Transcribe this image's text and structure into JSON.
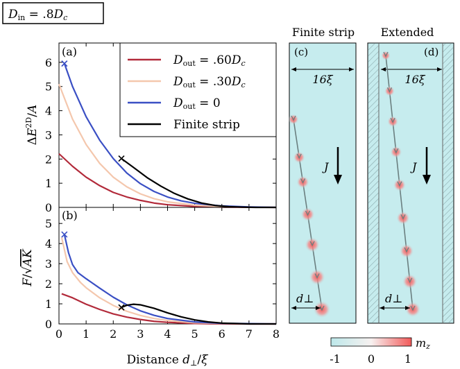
{
  "header_label": "D_in = .8D_c",
  "chart_data": [
    {
      "type": "line",
      "panel_label": "(a)",
      "xlabel": "Distance d⊥/ξ",
      "ylabel": "ΔE^2D/A",
      "xlim": [
        0,
        8
      ],
      "ylim": [
        0,
        6.8
      ],
      "xticks": [
        0,
        1,
        2,
        3,
        4,
        5,
        6,
        7,
        8
      ],
      "yticks": [
        0,
        1,
        2,
        3,
        4,
        5,
        6
      ],
      "legend_position": "top-right",
      "series": [
        {
          "name": "D_out = .60D_c",
          "color": "#b22a3a",
          "x": [
            0,
            0.5,
            1,
            1.5,
            2,
            2.5,
            3,
            3.5,
            4,
            5,
            6,
            8
          ],
          "y": [
            2.22,
            1.7,
            1.25,
            0.9,
            0.62,
            0.43,
            0.29,
            0.18,
            0.11,
            0.04,
            0.01,
            0
          ]
        },
        {
          "name": "D_out = .30D_c",
          "color": "#f4c7ad",
          "x": [
            0,
            0.5,
            1,
            1.5,
            2,
            2.5,
            3,
            3.5,
            4,
            5,
            6,
            8
          ],
          "y": [
            5.1,
            3.65,
            2.6,
            1.82,
            1.25,
            0.85,
            0.56,
            0.36,
            0.23,
            0.09,
            0.03,
            0
          ]
        },
        {
          "name": "D_out = 0",
          "color": "#3a4fc4",
          "x": [
            0.2,
            0.5,
            1,
            1.5,
            2,
            2.5,
            3,
            3.5,
            4,
            4.5,
            5,
            6,
            7,
            8
          ],
          "y": [
            5.95,
            5.0,
            3.75,
            2.78,
            2.02,
            1.42,
            0.98,
            0.66,
            0.43,
            0.27,
            0.17,
            0.06,
            0.02,
            0
          ]
        },
        {
          "name": "Finite strip",
          "color": "#000000",
          "x": [
            2.3,
            2.75,
            3.25,
            3.75,
            4.25,
            4.75,
            5.25,
            5.75,
            6.25,
            6.75,
            7.25,
            8
          ],
          "y": [
            2.02,
            1.65,
            1.23,
            0.88,
            0.58,
            0.35,
            0.18,
            0.08,
            0.03,
            0.01,
            0,
            0
          ]
        }
      ],
      "markers": [
        {
          "x": 0.2,
          "y": 5.95,
          "color": "#3a4fc4"
        },
        {
          "x": 2.3,
          "y": 2.02,
          "color": "#000000"
        }
      ]
    },
    {
      "type": "line",
      "panel_label": "(b)",
      "xlabel": "Distance d⊥/ξ",
      "ylabel": "F/√(AK)",
      "xlim": [
        0,
        8
      ],
      "ylim": [
        0,
        5.8
      ],
      "xticks": [
        0,
        1,
        2,
        3,
        4,
        5,
        6,
        7,
        8
      ],
      "yticks": [
        0,
        1,
        2,
        3,
        4,
        5
      ],
      "series": [
        {
          "name": "D_out = .60D_c",
          "color": "#b22a3a",
          "x": [
            0.1,
            0.5,
            1,
            1.5,
            2,
            2.5,
            3,
            3.5,
            4,
            5,
            6,
            8
          ],
          "y": [
            1.5,
            1.3,
            0.98,
            0.72,
            0.5,
            0.34,
            0.22,
            0.13,
            0.08,
            0.02,
            0,
            0
          ]
        },
        {
          "name": "D_out = .30D_c",
          "color": "#f4c7ad",
          "x": [
            0.1,
            0.3,
            0.5,
            0.8,
            1,
            1.5,
            2,
            2.5,
            3,
            3.5,
            4,
            5,
            6,
            8
          ],
          "y": [
            4.3,
            3.1,
            2.55,
            2.05,
            1.8,
            1.3,
            0.92,
            0.63,
            0.42,
            0.27,
            0.17,
            0.06,
            0.02,
            0
          ]
        },
        {
          "name": "D_out = 0",
          "color": "#3a4fc4",
          "x": [
            0.2,
            0.35,
            0.5,
            0.7,
            1,
            1.5,
            2,
            2.5,
            3,
            3.5,
            4,
            5,
            6,
            8
          ],
          "y": [
            4.45,
            3.55,
            2.95,
            2.55,
            2.25,
            1.78,
            1.33,
            0.95,
            0.65,
            0.43,
            0.27,
            0.1,
            0.03,
            0
          ]
        },
        {
          "name": "Finite strip",
          "color": "#000000",
          "x": [
            2.3,
            2.5,
            2.75,
            3,
            3.5,
            4,
            4.5,
            5,
            5.5,
            6,
            7,
            8
          ],
          "y": [
            0.82,
            0.93,
            0.98,
            0.95,
            0.78,
            0.55,
            0.35,
            0.2,
            0.1,
            0.04,
            0,
            0
          ]
        }
      ],
      "markers": [
        {
          "x": 0.2,
          "y": 4.45,
          "color": "#3a4fc4"
        },
        {
          "x": 2.3,
          "y": 0.82,
          "color": "#000000"
        }
      ]
    }
  ],
  "strips": {
    "c": {
      "title": "Finite strip",
      "panel_label": "(c)",
      "width_label": "16ξ",
      "current_label": "J",
      "offset_label": "d⊥",
      "hatched": false,
      "skyrmion_path": [
        [
          0.02,
          0.0
        ],
        [
          0.55,
          1.0
        ]
      ],
      "skyrmions": [
        0.0,
        0.2,
        0.33,
        0.5,
        0.66,
        0.83,
        1.0
      ]
    },
    "d": {
      "title": "Extended",
      "panel_label": "(d)",
      "width_label": "16ξ",
      "current_label": "J",
      "offset_label": "d⊥",
      "hatched": true,
      "skyrmions": [
        0.0,
        0.14,
        0.26,
        0.38,
        0.51,
        0.64,
        0.77,
        0.89,
        1.0
      ]
    }
  },
  "colorbar": {
    "label": "m_z",
    "ticks": [
      "-1",
      "0",
      "1"
    ],
    "low_color": "#bde8ea",
    "high_color": "#f25a5a"
  }
}
